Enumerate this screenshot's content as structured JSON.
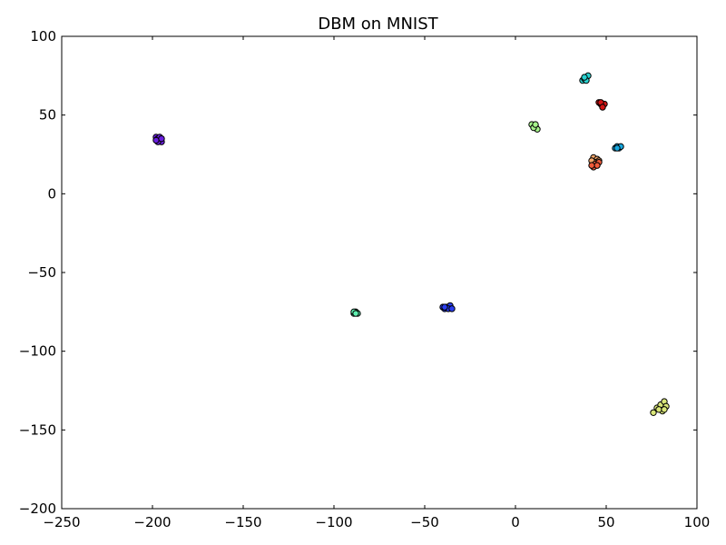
{
  "chart_data": {
    "type": "scatter",
    "title": "DBM on MNIST",
    "xlabel": "",
    "ylabel": "",
    "xlim": [
      -250,
      100
    ],
    "ylim": [
      -200,
      100
    ],
    "xticks": [
      -250,
      -200,
      -150,
      -100,
      -50,
      0,
      50,
      100
    ],
    "yticks": [
      -200,
      -150,
      -100,
      -50,
      0,
      50,
      100
    ],
    "xtick_labels": [
      "−250",
      "−200",
      "−150",
      "−100",
      "−50",
      "0",
      "50",
      "100"
    ],
    "ytick_labels": [
      "−200",
      "−150",
      "−100",
      "−50",
      "0",
      "50",
      "100"
    ],
    "grid": false,
    "legend": "none",
    "series": [
      {
        "color": "#6a1fe0",
        "points": [
          [
            -198,
            36
          ],
          [
            -197,
            35
          ],
          [
            -196,
            34
          ],
          [
            -195,
            33
          ],
          [
            -197,
            33
          ],
          [
            -196,
            36
          ],
          [
            -198,
            34
          ],
          [
            -195,
            35
          ]
        ]
      },
      {
        "color": "#2a3df0",
        "points": [
          [
            -40,
            -72
          ],
          [
            -39,
            -73
          ],
          [
            -38,
            -72
          ],
          [
            -36,
            -71
          ],
          [
            -37,
            -73
          ],
          [
            -35,
            -73
          ],
          [
            -39,
            -72
          ]
        ]
      },
      {
        "color": "#17a8e0",
        "points": [
          [
            55,
            29
          ],
          [
            56,
            30
          ],
          [
            57,
            29
          ],
          [
            58,
            30
          ],
          [
            56,
            29
          ]
        ]
      },
      {
        "color": "#2ad2d0",
        "points": [
          [
            37,
            72
          ],
          [
            38,
            73
          ],
          [
            39,
            74
          ],
          [
            40,
            75
          ],
          [
            39,
            72
          ],
          [
            38,
            74
          ]
        ]
      },
      {
        "color": "#5ef0b0",
        "points": [
          [
            -89,
            -76
          ],
          [
            -88,
            -75
          ],
          [
            -87,
            -76
          ],
          [
            -89,
            -75
          ],
          [
            -88,
            -76
          ]
        ]
      },
      {
        "color": "#a6f58a",
        "points": [
          [
            9,
            44
          ],
          [
            11,
            43
          ],
          [
            12,
            41
          ],
          [
            10,
            42
          ],
          [
            11,
            44
          ]
        ]
      },
      {
        "color": "#d9e67a",
        "points": [
          [
            76,
            -139
          ],
          [
            78,
            -136
          ],
          [
            80,
            -134
          ],
          [
            82,
            -132
          ],
          [
            83,
            -135
          ],
          [
            81,
            -138
          ],
          [
            79,
            -137
          ],
          [
            82,
            -137
          ]
        ]
      },
      {
        "color": "#f2a56a",
        "points": [
          [
            43,
            23
          ],
          [
            45,
            22
          ],
          [
            44,
            20
          ],
          [
            46,
            21
          ],
          [
            42,
            21
          ]
        ]
      },
      {
        "color": "#ef5a3a",
        "points": [
          [
            43,
            17
          ],
          [
            44,
            19
          ],
          [
            46,
            20
          ],
          [
            45,
            18
          ],
          [
            42,
            18
          ]
        ]
      },
      {
        "color": "#d31515",
        "points": [
          [
            46,
            58
          ],
          [
            47,
            57
          ],
          [
            48,
            56
          ],
          [
            49,
            57
          ],
          [
            47,
            58
          ],
          [
            48,
            55
          ]
        ]
      }
    ]
  }
}
